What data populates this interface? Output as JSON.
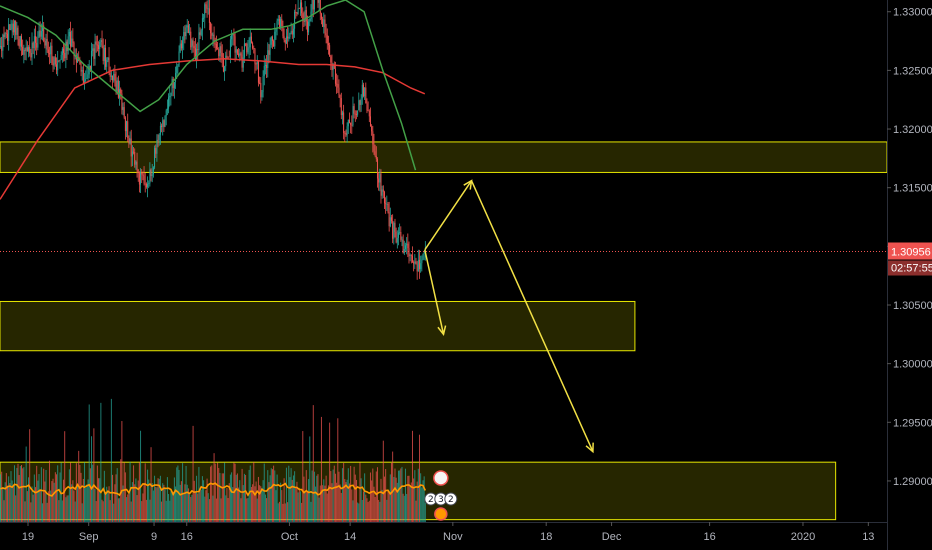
{
  "chart_data": {
    "type": "candlestick",
    "instrument_price_scale": {
      "ticks": [
        "1.33000",
        "1.32500",
        "1.32000",
        "1.31500",
        "1.31000",
        "1.30500",
        "1.30000",
        "1.29500",
        "1.29000"
      ],
      "tick_values": [
        1.33,
        1.325,
        1.32,
        1.315,
        1.31,
        1.305,
        1.3,
        1.295,
        1.29
      ],
      "range": [
        1.2865,
        1.331
      ]
    },
    "time_axis": {
      "labels": [
        "19",
        "Sep",
        "9",
        "16",
        "Oct",
        "14",
        "Nov",
        "18",
        "Dec",
        "16",
        "2020",
        "13"
      ],
      "day_range": [
        0,
        190
      ],
      "label_days": [
        6,
        19,
        33,
        40,
        62,
        75,
        97,
        117,
        131,
        152,
        172,
        186
      ]
    },
    "current_price": {
      "value": 1.30956,
      "label": "1.30956",
      "countdown": "02:57:55",
      "color": "#ef5350"
    },
    "price_path": [
      [
        0,
        1.327
      ],
      [
        3,
        1.329
      ],
      [
        6,
        1.326
      ],
      [
        9,
        1.3285
      ],
      [
        12,
        1.3255
      ],
      [
        15,
        1.3275
      ],
      [
        18,
        1.324
      ],
      [
        21,
        1.3275
      ],
      [
        24,
        1.325
      ],
      [
        26,
        1.3225
      ],
      [
        28,
        1.3185
      ],
      [
        30,
        1.316
      ],
      [
        32,
        1.3155
      ],
      [
        34,
        1.319
      ],
      [
        36,
        1.3215
      ],
      [
        38,
        1.3255
      ],
      [
        40,
        1.3285
      ],
      [
        42,
        1.3265
      ],
      [
        44,
        1.3305
      ],
      [
        46,
        1.328
      ],
      [
        48,
        1.3255
      ],
      [
        50,
        1.3275
      ],
      [
        52,
        1.326
      ],
      [
        54,
        1.328
      ],
      [
        56,
        1.3235
      ],
      [
        58,
        1.327
      ],
      [
        60,
        1.329
      ],
      [
        62,
        1.3275
      ],
      [
        64,
        1.3305
      ],
      [
        66,
        1.329
      ],
      [
        68,
        1.332
      ],
      [
        70,
        1.328
      ],
      [
        72,
        1.3245
      ],
      [
        74,
        1.3195
      ],
      [
        76,
        1.3215
      ],
      [
        78,
        1.3235
      ],
      [
        80,
        1.3185
      ],
      [
        82,
        1.3145
      ],
      [
        84,
        1.3115
      ],
      [
        86,
        1.3105
      ],
      [
        88,
        1.309
      ],
      [
        90,
        1.3085
      ],
      [
        91,
        1.30956
      ]
    ],
    "series": [
      {
        "name": "",
        "kind": "moving-average",
        "color": "#e53935",
        "points": [
          [
            0,
            1.314
          ],
          [
            8,
            1.319
          ],
          [
            16,
            1.3235
          ],
          [
            24,
            1.325
          ],
          [
            32,
            1.3255
          ],
          [
            40,
            1.3258
          ],
          [
            48,
            1.326
          ],
          [
            56,
            1.3258
          ],
          [
            64,
            1.3255
          ],
          [
            70,
            1.3255
          ],
          [
            76,
            1.3253
          ],
          [
            82,
            1.3248
          ],
          [
            88,
            1.3235
          ],
          [
            91,
            1.323
          ]
        ]
      },
      {
        "name": "",
        "kind": "moving-average",
        "color": "#43a047",
        "points": [
          [
            0,
            1.3305
          ],
          [
            6,
            1.3295
          ],
          [
            12,
            1.328
          ],
          [
            18,
            1.3255
          ],
          [
            24,
            1.3235
          ],
          [
            30,
            1.3215
          ],
          [
            34,
            1.3225
          ],
          [
            40,
            1.3255
          ],
          [
            46,
            1.3275
          ],
          [
            52,
            1.3285
          ],
          [
            58,
            1.3285
          ],
          [
            62,
            1.3288
          ],
          [
            66,
            1.3295
          ],
          [
            70,
            1.3305
          ],
          [
            74,
            1.331
          ],
          [
            78,
            1.33
          ],
          [
            82,
            1.325
          ],
          [
            86,
            1.3205
          ],
          [
            89,
            1.3165
          ]
        ]
      }
    ],
    "zones": [
      {
        "price_top": 1.3189,
        "price_bottom": 1.3163,
        "day_start": 0,
        "day_end": 190,
        "border": "#e7e700",
        "fill": "#2a2a00"
      },
      {
        "price_top": 1.3053,
        "price_bottom": 1.3011,
        "day_start": 0,
        "day_end": 136,
        "border": "#e7e700",
        "fill": "#2a2a00"
      },
      {
        "price_top": 1.2916,
        "price_bottom": 1.2867,
        "day_start": 0,
        "day_end": 179,
        "border": "#e7e700",
        "fill": "#2a2a00"
      }
    ],
    "projection_arrows": [
      {
        "from": [
          91,
          1.3097
        ],
        "to": [
          101,
          1.3156
        ],
        "color": "#f1e045"
      },
      {
        "from": [
          101,
          1.3156
        ],
        "to": [
          127,
          1.2925
        ],
        "color": "#f1e045"
      },
      {
        "from": [
          91,
          1.3097
        ],
        "to": [
          95,
          1.3025
        ],
        "color": "#f1e045"
      }
    ],
    "volume": {
      "up_color": "#26a69a",
      "down_color": "#ef5350",
      "average_color": "#ff9800"
    },
    "event_badges": [
      "2",
      "3",
      "2"
    ],
    "grid": false,
    "legend": "none"
  }
}
